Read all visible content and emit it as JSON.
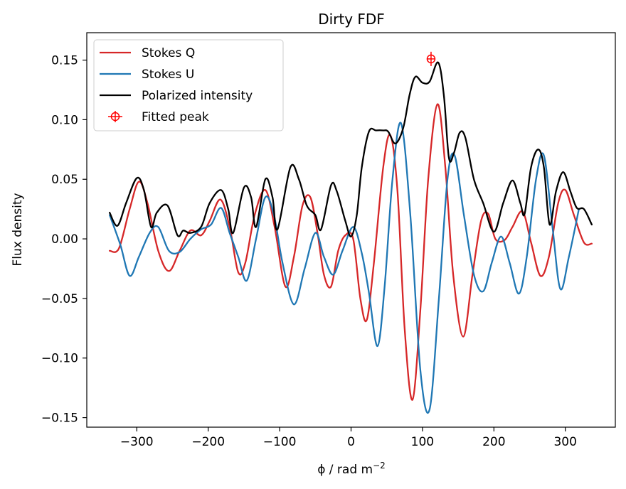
{
  "chart_data": {
    "type": "line",
    "title": "Dirty FDF",
    "xlabel_prefix": "ϕ / rad m",
    "xlabel_exp": "−2",
    "ylabel": "Flux density",
    "xlim": [
      -370,
      370
    ],
    "ylim": [
      -0.158,
      0.173
    ],
    "xticks": [
      -300,
      -200,
      -100,
      0,
      100,
      200,
      300
    ],
    "xtick_labels": [
      "−300",
      "−200",
      "−100",
      "0",
      "100",
      "200",
      "300"
    ],
    "yticks": [
      -0.15,
      -0.1,
      -0.05,
      0.0,
      0.05,
      0.1,
      0.15
    ],
    "ytick_labels": [
      "−0.15",
      "−0.10",
      "−0.05",
      "0.00",
      "0.05",
      "0.10",
      "0.15"
    ],
    "grid": false,
    "legend_position": "top-left",
    "colors": {
      "q": "#d62728",
      "u": "#1f77b4",
      "p": "#000000",
      "peak": "#ff0000"
    },
    "series": [
      {
        "name": "Stokes Q",
        "color": "#d62728",
        "x": [
          -338,
          -325,
          -310,
          -297,
          -285,
          -270,
          -255,
          -240,
          -225,
          -210,
          -198,
          -183,
          -170,
          -158,
          -148,
          -135,
          -120,
          -107,
          -92,
          -80,
          -68,
          -57,
          -47,
          -38,
          -28,
          -18,
          -8,
          3,
          13,
          22,
          32,
          45,
          55,
          65,
          75,
          86,
          97,
          108,
          121,
          132,
          143,
          157,
          170,
          182,
          192,
          202,
          215,
          226,
          240,
          252,
          265,
          277,
          290,
          300,
          312,
          326,
          337
        ],
        "y": [
          -0.01,
          -0.008,
          0.025,
          0.048,
          0.03,
          -0.01,
          -0.027,
          -0.01,
          0.007,
          0.003,
          0.015,
          0.033,
          0.01,
          -0.028,
          -0.02,
          0.02,
          0.041,
          0.01,
          -0.04,
          -0.015,
          0.028,
          0.035,
          0.005,
          -0.03,
          -0.04,
          -0.01,
          0.003,
          0.0,
          -0.05,
          -0.068,
          -0.02,
          0.06,
          0.087,
          0.04,
          -0.075,
          -0.135,
          -0.06,
          0.05,
          0.113,
          0.06,
          -0.03,
          -0.082,
          -0.03,
          0.015,
          0.021,
          0.0,
          -0.001,
          0.01,
          0.023,
          -0.003,
          -0.031,
          -0.015,
          0.03,
          0.041,
          0.02,
          -0.003,
          -0.004
        ]
      },
      {
        "name": "Stokes U",
        "color": "#1f77b4",
        "x": [
          -338,
          -323,
          -310,
          -297,
          -282,
          -270,
          -255,
          -240,
          -225,
          -210,
          -196,
          -182,
          -170,
          -158,
          -146,
          -133,
          -120,
          -108,
          -96,
          -80,
          -65,
          -50,
          -38,
          -25,
          -12,
          3,
          15,
          25,
          37,
          47,
          58,
          70,
          83,
          97,
          110,
          123,
          135,
          145,
          158,
          172,
          185,
          197,
          210,
          222,
          235,
          246,
          259,
          270,
          282,
          293,
          305,
          319
        ],
        "y": [
          0.02,
          -0.005,
          -0.031,
          -0.015,
          0.005,
          0.01,
          -0.01,
          -0.011,
          0.0,
          0.008,
          0.012,
          0.026,
          0.005,
          -0.015,
          -0.035,
          0.0,
          0.035,
          0.02,
          -0.02,
          -0.055,
          -0.025,
          0.005,
          -0.015,
          -0.03,
          -0.01,
          0.01,
          -0.012,
          -0.045,
          -0.09,
          -0.04,
          0.05,
          0.097,
          0.02,
          -0.11,
          -0.143,
          -0.05,
          0.05,
          0.07,
          0.02,
          -0.03,
          -0.044,
          -0.02,
          0.002,
          -0.02,
          -0.046,
          -0.015,
          0.05,
          0.07,
          0.01,
          -0.042,
          -0.015,
          0.025
        ]
      },
      {
        "name": "Polarized intensity",
        "color": "#000000",
        "x": [
          -338,
          -327,
          -315,
          -300,
          -290,
          -280,
          -272,
          -257,
          -243,
          -235,
          -225,
          -210,
          -198,
          -182,
          -172,
          -165,
          -150,
          -140,
          -133,
          -120,
          -110,
          -103,
          -85,
          -73,
          -62,
          -50,
          -42,
          -28,
          -20,
          -8,
          0,
          8,
          15,
          25,
          35,
          45,
          52,
          62,
          73,
          82,
          90,
          100,
          110,
          122,
          130,
          137,
          144,
          152,
          160,
          172,
          185,
          200,
          213,
          226,
          237,
          243,
          252,
          262,
          270,
          278,
          287,
          297,
          307,
          316,
          326,
          337
        ],
        "y": [
          0.022,
          0.011,
          0.03,
          0.051,
          0.041,
          0.01,
          0.022,
          0.028,
          0.003,
          0.007,
          0.005,
          0.01,
          0.03,
          0.041,
          0.025,
          0.005,
          0.043,
          0.035,
          0.01,
          0.05,
          0.035,
          0.008,
          0.06,
          0.05,
          0.028,
          0.02,
          0.008,
          0.045,
          0.04,
          0.015,
          0.002,
          0.02,
          0.06,
          0.09,
          0.091,
          0.091,
          0.09,
          0.08,
          0.093,
          0.121,
          0.136,
          0.131,
          0.132,
          0.148,
          0.12,
          0.068,
          0.072,
          0.089,
          0.085,
          0.05,
          0.03,
          0.006,
          0.03,
          0.049,
          0.03,
          0.021,
          0.06,
          0.075,
          0.06,
          0.012,
          0.04,
          0.056,
          0.04,
          0.026,
          0.025,
          0.012
        ]
      }
    ],
    "fitted_peak": {
      "name": "Fitted peak",
      "x": 112,
      "y": 0.151,
      "yerr": 0.006,
      "color": "#ff0000"
    },
    "legend": [
      "Stokes Q",
      "Stokes U",
      "Polarized intensity",
      "Fitted peak"
    ]
  }
}
